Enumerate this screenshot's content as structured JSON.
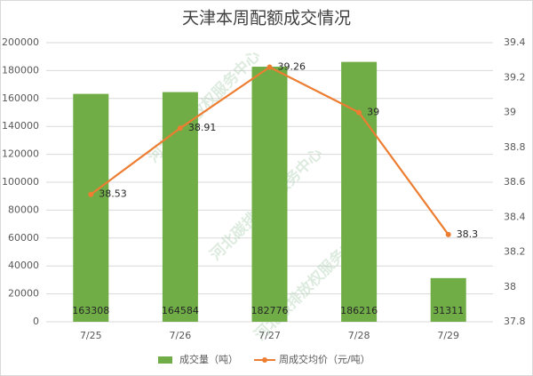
{
  "chart_data": {
    "type": "bar",
    "title": "天津本周配额成交情况",
    "categories": [
      "7/25",
      "7/26",
      "7/27",
      "7/28",
      "7/29"
    ],
    "series": [
      {
        "name": "成交量（吨）",
        "type": "bar",
        "color": "#70ad47",
        "values": [
          163308,
          164584,
          182776,
          186216,
          31311
        ]
      },
      {
        "name": "周成交均价（元/吨）",
        "type": "line",
        "axis": "y2",
        "color": "#ed7d31",
        "values": [
          38.53,
          38.91,
          39.26,
          39,
          38.3
        ]
      }
    ],
    "ylim": [
      0,
      200000
    ],
    "yticks": [
      0,
      20000,
      40000,
      60000,
      80000,
      100000,
      120000,
      140000,
      160000,
      180000,
      200000
    ],
    "y2lim": [
      37.8,
      39.4
    ],
    "y2ticks": [
      37.8,
      38,
      38.2,
      38.4,
      38.6,
      38.8,
      39,
      39.2,
      39.4
    ],
    "grid": true,
    "legend": "bottom",
    "watermark": "河北碳排放权服务中心"
  }
}
